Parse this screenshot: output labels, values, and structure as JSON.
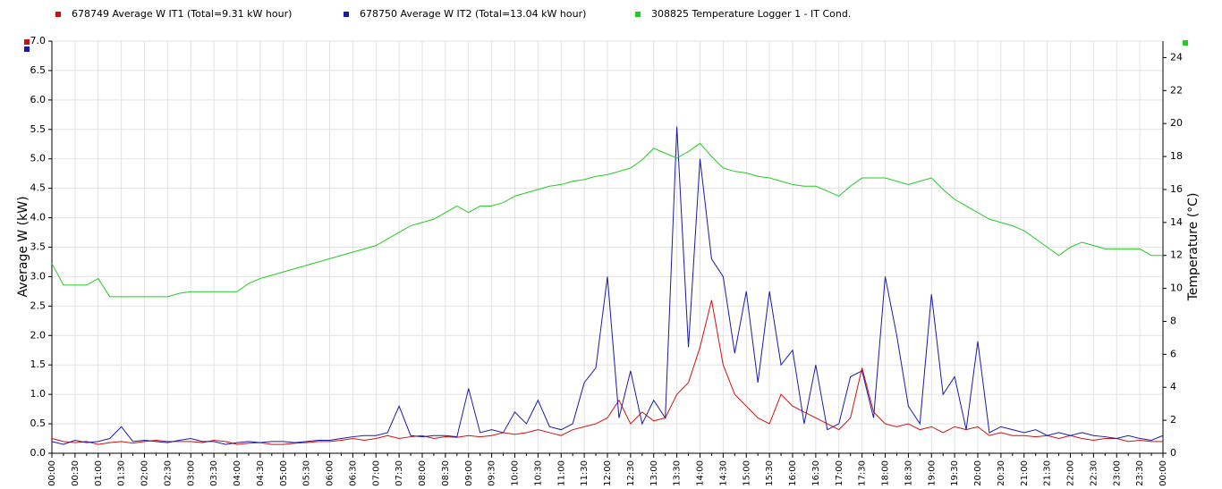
{
  "chart_data": {
    "type": "line",
    "ylabel": "Average W (kW)",
    "y2label": "Temperature (°C)",
    "grid": true,
    "ylim": [
      0,
      7
    ],
    "yticks": [
      {
        "value": 0,
        "label": "0.0"
      },
      {
        "value": 0.5,
        "label": "0.5"
      },
      {
        "value": 1,
        "label": "1.0"
      },
      {
        "value": 1.5,
        "label": "1.5"
      },
      {
        "value": 2,
        "label": "2.0"
      },
      {
        "value": 2.5,
        "label": "2.5"
      },
      {
        "value": 3,
        "label": "3.0"
      },
      {
        "value": 3.5,
        "label": "3.5"
      },
      {
        "value": 4,
        "label": "4.0"
      },
      {
        "value": 4.5,
        "label": "4.5"
      },
      {
        "value": 5,
        "label": "5.0"
      },
      {
        "value": 5.5,
        "label": "5.5"
      },
      {
        "value": 6,
        "label": "6.0"
      },
      {
        "value": 6.5,
        "label": "6.5"
      },
      {
        "value": 7,
        "label": "7.0"
      }
    ],
    "y2lim": [
      0,
      25
    ],
    "y2ticks": [
      0,
      2,
      4,
      6,
      8,
      10,
      12,
      14,
      16,
      18,
      20,
      22,
      24
    ],
    "categories": [
      "00:00",
      null,
      "00:30",
      null,
      "01:00",
      null,
      "01:30",
      null,
      "02:00",
      null,
      "02:30",
      null,
      "03:00",
      null,
      "03:30",
      null,
      "04:00",
      null,
      "04:30",
      null,
      "05:00",
      null,
      "05:30",
      null,
      "06:00",
      null,
      "06:30",
      null,
      "07:00",
      null,
      "07:30",
      null,
      "08:00",
      null,
      "08:30",
      null,
      "09:00",
      null,
      "09:30",
      null,
      "10:00",
      null,
      "10:30",
      null,
      "11:00",
      null,
      "11:30",
      null,
      "12:00",
      null,
      "12:30",
      null,
      "13:00",
      null,
      "13:30",
      null,
      "14:00",
      null,
      "14:30",
      null,
      "15:00",
      null,
      "15:30",
      null,
      "16:00",
      null,
      "16:30",
      null,
      "17:00",
      null,
      "17:30",
      null,
      "18:00",
      null,
      "18:30",
      null,
      "19:00",
      null,
      "19:30",
      null,
      "20:00",
      null,
      "20:30",
      null,
      "21:00",
      null,
      "21:30",
      null,
      "22:00",
      null,
      "22:30",
      null,
      "23:00",
      null,
      "23:30",
      null,
      "00:00"
    ],
    "series": [
      {
        "name": "678749  Average W IT1 (Total=9.31 kW hour)",
        "color": "#d01010",
        "values": [
          0.25,
          0.2,
          0.18,
          0.2,
          0.15,
          0.18,
          0.2,
          0.17,
          0.2,
          0.22,
          0.2,
          0.2,
          0.2,
          0.18,
          0.22,
          0.2,
          0.15,
          0.17,
          0.18,
          0.15,
          0.15,
          0.17,
          0.18,
          0.2,
          0.2,
          0.22,
          0.25,
          0.22,
          0.25,
          0.3,
          0.25,
          0.28,
          0.3,
          0.25,
          0.28,
          0.27,
          0.3,
          0.28,
          0.3,
          0.35,
          0.32,
          0.35,
          0.4,
          0.35,
          0.3,
          0.4,
          0.45,
          0.5,
          0.6,
          0.9,
          0.5,
          0.7,
          0.55,
          0.6,
          1.0,
          1.2,
          1.8,
          2.6,
          1.5,
          1.0,
          0.8,
          0.6,
          0.5,
          1.0,
          0.8,
          0.7,
          0.6,
          0.5,
          0.4,
          0.6,
          1.45,
          0.7,
          0.5,
          0.45,
          0.5,
          0.4,
          0.45,
          0.35,
          0.45,
          0.4,
          0.45,
          0.3,
          0.35,
          0.3,
          0.3,
          0.28,
          0.3,
          0.25,
          0.3,
          0.25,
          0.22,
          0.25,
          0.25,
          0.2,
          0.22,
          0.2,
          0.2
        ]
      },
      {
        "name": "678750  Average W IT2 (Total=13.04 kW hour)",
        "color": "#1a1aa8",
        "values": [
          0.2,
          0.15,
          0.22,
          0.18,
          0.2,
          0.25,
          0.45,
          0.2,
          0.22,
          0.2,
          0.18,
          0.22,
          0.25,
          0.2,
          0.2,
          0.15,
          0.18,
          0.2,
          0.18,
          0.2,
          0.2,
          0.18,
          0.2,
          0.22,
          0.22,
          0.25,
          0.28,
          0.3,
          0.3,
          0.35,
          0.8,
          0.3,
          0.28,
          0.3,
          0.3,
          0.28,
          1.1,
          0.35,
          0.4,
          0.35,
          0.7,
          0.5,
          0.9,
          0.45,
          0.4,
          0.5,
          1.2,
          1.45,
          3.0,
          0.6,
          1.4,
          0.5,
          0.9,
          0.6,
          5.55,
          1.8,
          5.0,
          3.3,
          3.0,
          1.7,
          2.75,
          1.2,
          2.75,
          1.5,
          1.75,
          0.5,
          1.5,
          0.4,
          0.5,
          1.3,
          1.4,
          0.6,
          3.0,
          2.0,
          0.8,
          0.5,
          2.7,
          1.0,
          1.3,
          0.4,
          1.9,
          0.35,
          0.45,
          0.4,
          0.35,
          0.4,
          0.3,
          0.35,
          0.3,
          0.35,
          0.3,
          0.28,
          0.25,
          0.3,
          0.25,
          0.22,
          0.3
        ]
      },
      {
        "name": "308825  Temperature Logger 1 - IT Cond.",
        "color": "#22cc22",
        "axis": "y2",
        "values": [
          11.5,
          10.2,
          10.2,
          10.2,
          10.6,
          9.5,
          9.5,
          9.5,
          9.5,
          9.5,
          9.5,
          9.7,
          9.8,
          9.8,
          9.8,
          9.8,
          9.8,
          10.3,
          10.6,
          10.8,
          11.0,
          11.2,
          11.4,
          11.6,
          11.8,
          12.0,
          12.2,
          12.4,
          12.6,
          13.0,
          13.4,
          13.8,
          14.0,
          14.2,
          14.6,
          15.0,
          14.6,
          15.0,
          15.0,
          15.2,
          15.6,
          15.8,
          16.0,
          16.2,
          16.3,
          16.5,
          16.6,
          16.8,
          16.9,
          17.1,
          17.3,
          17.8,
          18.5,
          18.2,
          17.9,
          18.3,
          18.8,
          18.0,
          17.3,
          17.1,
          17.0,
          16.8,
          16.7,
          16.5,
          16.3,
          16.2,
          16.2,
          15.9,
          15.6,
          16.2,
          16.7,
          16.7,
          16.7,
          16.5,
          16.3,
          16.5,
          16.7,
          16.0,
          15.4,
          15.0,
          14.6,
          14.2,
          14.0,
          13.8,
          13.5,
          13.0,
          12.5,
          12.0,
          12.5,
          12.8,
          12.6,
          12.4,
          12.4,
          12.4,
          12.4,
          12.0,
          12.0
        ]
      }
    ]
  }
}
